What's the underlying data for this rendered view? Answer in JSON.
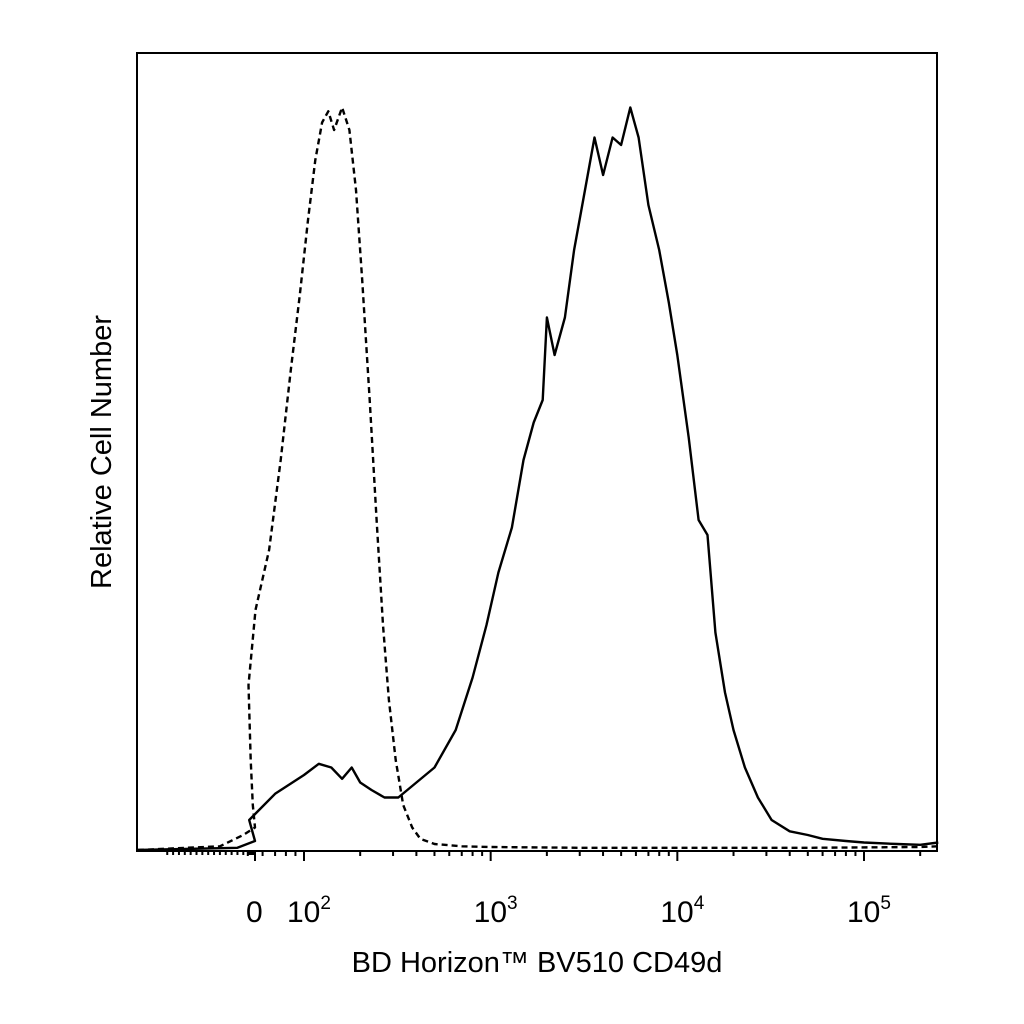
{
  "chart_data": {
    "type": "histogram",
    "xlabel": "BD Horizon™ BV510 CD49d",
    "ylabel": "Relative Cell Number",
    "x_scale": "biexponential (linear near 0, log10 above)",
    "xlim": [
      -200,
      250000
    ],
    "y_axis_ticks": "none",
    "grid": false,
    "legend": "none",
    "tick_labels": [
      {
        "value": 0,
        "base": "0",
        "exp": ""
      },
      {
        "value": 100,
        "base": "10",
        "exp": "2"
      },
      {
        "value": 1000,
        "base": "10",
        "exp": "3"
      },
      {
        "value": 10000,
        "base": "10",
        "exp": "4"
      },
      {
        "value": 100000,
        "base": "10",
        "exp": "5"
      }
    ],
    "series": [
      {
        "style": "dashed",
        "color": "#000000",
        "points": [
          [
            -200,
            0.0
          ],
          [
            -60,
            0.005
          ],
          [
            -20,
            0.02
          ],
          [
            0,
            0.03
          ],
          [
            15,
            0.06
          ],
          [
            30,
            0.12
          ],
          [
            45,
            0.22
          ],
          [
            55,
            0.32
          ],
          [
            65,
            0.4
          ],
          [
            75,
            0.52
          ],
          [
            85,
            0.64
          ],
          [
            95,
            0.74
          ],
          [
            105,
            0.84
          ],
          [
            115,
            0.92
          ],
          [
            125,
            0.97
          ],
          [
            135,
            0.985
          ],
          [
            145,
            0.96
          ],
          [
            160,
            0.99
          ],
          [
            175,
            0.96
          ],
          [
            190,
            0.88
          ],
          [
            205,
            0.76
          ],
          [
            225,
            0.6
          ],
          [
            245,
            0.44
          ],
          [
            265,
            0.3
          ],
          [
            285,
            0.2
          ],
          [
            310,
            0.12
          ],
          [
            340,
            0.06
          ],
          [
            380,
            0.03
          ],
          [
            420,
            0.015
          ],
          [
            500,
            0.008
          ],
          [
            700,
            0.005
          ],
          [
            1000,
            0.004
          ],
          [
            3000,
            0.003
          ],
          [
            10000,
            0.003
          ],
          [
            50000,
            0.003
          ],
          [
            200000,
            0.004
          ],
          [
            250000,
            0.005
          ]
        ]
      },
      {
        "style": "solid",
        "color": "#000000",
        "points": [
          [
            -200,
            0.0
          ],
          [
            -30,
            0.003
          ],
          [
            0,
            0.012
          ],
          [
            40,
            0.04
          ],
          [
            70,
            0.075
          ],
          [
            100,
            0.1
          ],
          [
            120,
            0.115
          ],
          [
            140,
            0.11
          ],
          [
            160,
            0.095
          ],
          [
            180,
            0.11
          ],
          [
            200,
            0.09
          ],
          [
            230,
            0.08
          ],
          [
            270,
            0.07
          ],
          [
            320,
            0.07
          ],
          [
            400,
            0.09
          ],
          [
            500,
            0.11
          ],
          [
            650,
            0.16
          ],
          [
            800,
            0.23
          ],
          [
            950,
            0.3
          ],
          [
            1100,
            0.37
          ],
          [
            1300,
            0.43
          ],
          [
            1500,
            0.52
          ],
          [
            1700,
            0.57
          ],
          [
            1900,
            0.6
          ],
          [
            2000,
            0.71
          ],
          [
            2200,
            0.66
          ],
          [
            2500,
            0.71
          ],
          [
            2800,
            0.8
          ],
          [
            3200,
            0.88
          ],
          [
            3600,
            0.95
          ],
          [
            4000,
            0.9
          ],
          [
            4500,
            0.95
          ],
          [
            5000,
            0.94
          ],
          [
            5600,
            0.99
          ],
          [
            6200,
            0.95
          ],
          [
            7000,
            0.86
          ],
          [
            8000,
            0.8
          ],
          [
            9000,
            0.73
          ],
          [
            10000,
            0.66
          ],
          [
            11500,
            0.55
          ],
          [
            13000,
            0.44
          ],
          [
            14500,
            0.42
          ],
          [
            16000,
            0.29
          ],
          [
            18000,
            0.21
          ],
          [
            20000,
            0.16
          ],
          [
            23000,
            0.11
          ],
          [
            27000,
            0.07
          ],
          [
            32000,
            0.04
          ],
          [
            40000,
            0.025
          ],
          [
            50000,
            0.02
          ],
          [
            60000,
            0.015
          ],
          [
            80000,
            0.012
          ],
          [
            100000,
            0.01
          ],
          [
            150000,
            0.008
          ],
          [
            200000,
            0.007
          ],
          [
            250000,
            0.01
          ]
        ]
      }
    ]
  }
}
